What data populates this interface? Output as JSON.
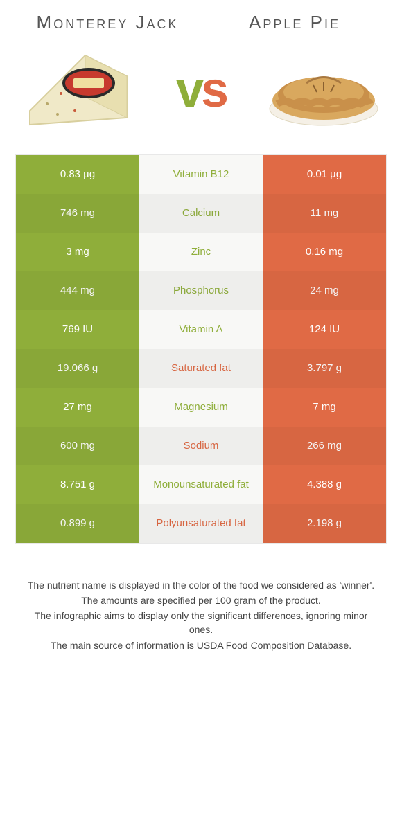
{
  "left_food": "Monterey Jack",
  "right_food": "Apple Pie",
  "vs_label": "vs",
  "colors": {
    "left": "#8fae3a",
    "right": "#e06a45",
    "mid_bg": "#f8f8f6"
  },
  "rows": [
    {
      "nutrient": "Vitamin B12",
      "left": "0.83 µg",
      "right": "0.01 µg",
      "winner": "left"
    },
    {
      "nutrient": "Calcium",
      "left": "746 mg",
      "right": "11 mg",
      "winner": "left"
    },
    {
      "nutrient": "Zinc",
      "left": "3 mg",
      "right": "0.16 mg",
      "winner": "left"
    },
    {
      "nutrient": "Phosphorus",
      "left": "444 mg",
      "right": "24 mg",
      "winner": "left"
    },
    {
      "nutrient": "Vitamin A",
      "left": "769 IU",
      "right": "124 IU",
      "winner": "left"
    },
    {
      "nutrient": "Saturated fat",
      "left": "19.066 g",
      "right": "3.797 g",
      "winner": "right"
    },
    {
      "nutrient": "Magnesium",
      "left": "27 mg",
      "right": "7 mg",
      "winner": "left"
    },
    {
      "nutrient": "Sodium",
      "left": "600 mg",
      "right": "266 mg",
      "winner": "right"
    },
    {
      "nutrient": "Monounsaturated fat",
      "left": "8.751 g",
      "right": "4.388 g",
      "winner": "left"
    },
    {
      "nutrient": "Polyunsaturated fat",
      "left": "0.899 g",
      "right": "2.198 g",
      "winner": "right"
    }
  ],
  "footnotes": [
    "The nutrient name is displayed in the color of the food we considered as 'winner'.",
    "The amounts are specified per 100 gram of the product.",
    "The infographic aims to display only the significant differences, ignoring minor ones.",
    "The main source of information is USDA Food Composition Database."
  ]
}
